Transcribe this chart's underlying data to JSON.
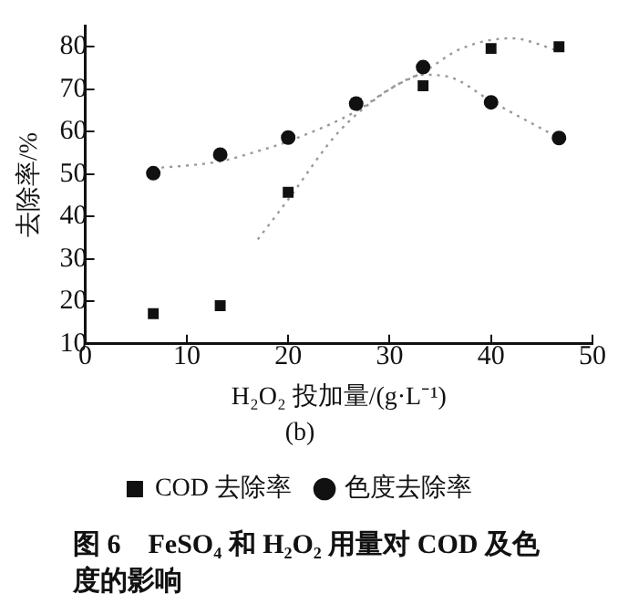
{
  "chart_data": {
    "type": "scatter",
    "xlabel": "H₂O₂ 投加量/(g·L⁻¹)",
    "ylabel": "去除率/%",
    "xlim": [
      0,
      50
    ],
    "xticks": [
      0,
      10,
      20,
      30,
      40,
      50
    ],
    "ylim": [
      10,
      85
    ],
    "yticks": [
      10,
      20,
      30,
      40,
      50,
      60,
      70,
      80
    ],
    "grid": false,
    "legend": "bottom",
    "series": [
      {
        "name": "COD 去除率",
        "marker": "square",
        "color": "#111111",
        "x": [
          6.7,
          13.3,
          20,
          26.7,
          33.3,
          40,
          46.7
        ],
        "values": [
          17.1,
          19,
          45.7,
          66.6,
          70.8,
          79.6,
          80
        ]
      },
      {
        "name": "色度去除率",
        "marker": "circle",
        "color": "#111111",
        "x": [
          6.7,
          13.3,
          20,
          26.7,
          33.3,
          40,
          46.7
        ],
        "values": [
          50.2,
          54.6,
          58.6,
          66.6,
          75.2,
          66.9,
          58.5
        ]
      },
      {
        "type": "line",
        "marker": "none",
        "line_style": "dotted",
        "color": "#999999",
        "x": [
          17,
          20,
          25,
          30,
          33.3,
          37,
          42,
          46.7
        ],
        "values": [
          34.6,
          44,
          60,
          70,
          74,
          79.5,
          82,
          79
        ]
      },
      {
        "type": "line",
        "marker": "none",
        "line_style": "dotted",
        "color": "#999999",
        "x": [
          6.7,
          10,
          13.3,
          17,
          20,
          26.7,
          30,
          33.3,
          36,
          40,
          46.7
        ],
        "values": [
          51.4,
          52,
          53,
          55.4,
          57.7,
          64.8,
          70,
          73.4,
          72.8,
          67.2,
          58.5
        ]
      }
    ],
    "annotations": [
      "(b)",
      "图 6　FeSO₄ 和 H₂O₂ 用量对 COD 及色度的影响"
    ]
  }
}
